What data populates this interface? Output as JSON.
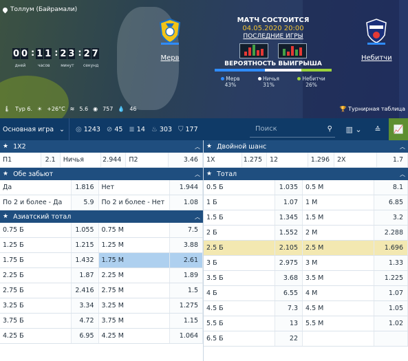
{
  "hero": {
    "venue": "Толлум (Байрамали)",
    "timer": [
      {
        "digits": [
          "0",
          "0"
        ],
        "label": "дней"
      },
      {
        "digits": [
          "1",
          "1"
        ],
        "label": "часов"
      },
      {
        "digits": [
          "2",
          "3"
        ],
        "label": "минут"
      },
      {
        "digits": [
          "2",
          "7"
        ],
        "label": "секунд"
      }
    ],
    "team1": {
      "name": "Мерв",
      "bar_color": "#2f8cff"
    },
    "team2": {
      "name": "Небитчи",
      "bar_color": "#2f8cff"
    },
    "status": "МАТЧ СОСТОИТСЯ",
    "date": "04.05.2020 20:00",
    "last_games_link": "ПОСЛЕДНИЕ ИГРЫ",
    "probability_title": "ВЕРОЯТНОСТЬ ВЫИГРЫША",
    "probabilities": [
      {
        "label": "Мерв 43%",
        "value": 43,
        "color": "#2f8cff"
      },
      {
        "label": "Ничья 31%",
        "value": 31,
        "color": "#ffffff"
      },
      {
        "label": "Небитчи 26%",
        "value": 26,
        "color": "#9bd23c"
      }
    ],
    "weather": {
      "round": "Тур 6.",
      "temp": "+26°C",
      "wind": "5.6",
      "pressure": "757",
      "humidity": "46"
    },
    "standings": "Турнирная таблица"
  },
  "nav": {
    "select_label": "Основная игра",
    "counts": [
      {
        "icon": "target-icon",
        "glyph": "◎",
        "value": "1243"
      },
      {
        "icon": "stats-icon",
        "glyph": "⊘",
        "value": "45"
      },
      {
        "icon": "bars-icon",
        "glyph": "≣",
        "value": "14"
      },
      {
        "icon": "fire-icon",
        "glyph": "♨",
        "value": "303"
      },
      {
        "icon": "shield-icon",
        "glyph": "⛉",
        "value": "177"
      }
    ],
    "search_placeholder": "Поиск"
  },
  "left": {
    "x12": {
      "title": "1X2",
      "rows": [
        [
          {
            "t": "П1",
            "w": 60
          },
          {
            "t": "2.1",
            "w": 28,
            "o": true
          },
          {
            "t": "Ничья",
            "w": 60
          },
          {
            "t": "2.944",
            "w": 36,
            "o": true
          },
          {
            "t": "П2",
            "w": 62
          },
          {
            "t": "3.46",
            "w": 50,
            "o": true
          }
        ]
      ]
    },
    "both": {
      "title": "Обе забьют",
      "rows": [
        [
          {
            "t": "Да",
            "w": 104
          },
          {
            "t": "1.816",
            "w": 40,
            "o": true
          },
          {
            "t": "Нет",
            "w": 104
          },
          {
            "t": "1.944",
            "w": 48,
            "o": true
          }
        ],
        [
          {
            "t": "По 2 и более - Да",
            "w": 104
          },
          {
            "t": "5.9",
            "w": 40,
            "o": true
          },
          {
            "t": "По 2 и более - Нет",
            "w": 104
          },
          {
            "t": "1.08",
            "w": 48,
            "o": true
          }
        ]
      ]
    },
    "asian": {
      "title": "Азиатский тотал",
      "rows": [
        [
          {
            "t": "0.75 Б",
            "w": 104
          },
          {
            "t": "1.055",
            "w": 40,
            "o": true
          },
          {
            "t": "0.75 М",
            "w": 104
          },
          {
            "t": "7.5",
            "w": 48,
            "o": true
          }
        ],
        [
          {
            "t": "1.25 Б",
            "w": 104
          },
          {
            "t": "1.215",
            "w": 40,
            "o": true
          },
          {
            "t": "1.25 М",
            "w": 104
          },
          {
            "t": "3.88",
            "w": 48,
            "o": true
          }
        ],
        [
          {
            "t": "1.75 Б",
            "w": 104
          },
          {
            "t": "1.432",
            "w": 40,
            "o": true
          },
          {
            "t": "1.75 М",
            "w": 104,
            "h": 1
          },
          {
            "t": "2.61",
            "w": 48,
            "o": true,
            "h": 1
          }
        ],
        [
          {
            "t": "2.25 Б",
            "w": 104
          },
          {
            "t": "1.87",
            "w": 40,
            "o": true
          },
          {
            "t": "2.25 М",
            "w": 104
          },
          {
            "t": "1.89",
            "w": 48,
            "o": true
          }
        ],
        [
          {
            "t": "2.75 Б",
            "w": 104
          },
          {
            "t": "2.416",
            "w": 40,
            "o": true
          },
          {
            "t": "2.75 М",
            "w": 104
          },
          {
            "t": "1.5",
            "w": 48,
            "o": true
          }
        ],
        [
          {
            "t": "3.25 Б",
            "w": 104
          },
          {
            "t": "3.34",
            "w": 40,
            "o": true
          },
          {
            "t": "3.25 М",
            "w": 104
          },
          {
            "t": "1.275",
            "w": 48,
            "o": true
          }
        ],
        [
          {
            "t": "3.75 Б",
            "w": 104
          },
          {
            "t": "4.72",
            "w": 40,
            "o": true
          },
          {
            "t": "3.75 М",
            "w": 104
          },
          {
            "t": "1.15",
            "w": 48,
            "o": true
          }
        ],
        [
          {
            "t": "4.25 Б",
            "w": 104
          },
          {
            "t": "6.95",
            "w": 40,
            "o": true
          },
          {
            "t": "4.25 М",
            "w": 104
          },
          {
            "t": "1.064",
            "w": 48,
            "o": true
          }
        ]
      ]
    }
  },
  "right": {
    "double": {
      "title": "Двойной шанс",
      "rows": [
        [
          {
            "t": "1X",
            "w": 56
          },
          {
            "t": "1.275",
            "w": 36,
            "o": true
          },
          {
            "t": "12",
            "w": 60
          },
          {
            "t": "1.296",
            "w": 38,
            "o": true
          },
          {
            "t": "2X",
            "w": 62
          },
          {
            "t": "1.7",
            "w": 45,
            "o": true
          }
        ]
      ]
    },
    "total": {
      "title": "Тотал",
      "rows": [
        [
          {
            "t": "0.5 Б",
            "w": 104
          },
          {
            "t": "1.035",
            "w": 40,
            "o": true
          },
          {
            "t": "0.5 М",
            "w": 104
          },
          {
            "t": "8.1",
            "w": 49,
            "o": true
          }
        ],
        [
          {
            "t": "1 Б",
            "w": 104
          },
          {
            "t": "1.07",
            "w": 40,
            "o": true
          },
          {
            "t": "1 М",
            "w": 104
          },
          {
            "t": "6.85",
            "w": 49,
            "o": true
          }
        ],
        [
          {
            "t": "1.5 Б",
            "w": 104
          },
          {
            "t": "1.345",
            "w": 40,
            "o": true
          },
          {
            "t": "1.5 М",
            "w": 104
          },
          {
            "t": "3.2",
            "w": 49,
            "o": true
          }
        ],
        [
          {
            "t": "2 Б",
            "w": 104
          },
          {
            "t": "1.552",
            "w": 40,
            "o": true
          },
          {
            "t": "2 М",
            "w": 104
          },
          {
            "t": "2.288",
            "w": 49,
            "o": true
          }
        ],
        [
          {
            "t": "2.5 Б",
            "w": 104,
            "y": 1
          },
          {
            "t": "2.105",
            "w": 40,
            "o": true,
            "y": 1
          },
          {
            "t": "2.5 М",
            "w": 104,
            "y": 1
          },
          {
            "t": "1.696",
            "w": 49,
            "o": true,
            "y": 1
          }
        ],
        [
          {
            "t": "3 Б",
            "w": 104
          },
          {
            "t": "2.975",
            "w": 40,
            "o": true
          },
          {
            "t": "3 М",
            "w": 104
          },
          {
            "t": "1.33",
            "w": 49,
            "o": true
          }
        ],
        [
          {
            "t": "3.5 Б",
            "w": 104
          },
          {
            "t": "3.68",
            "w": 40,
            "o": true
          },
          {
            "t": "3.5 М",
            "w": 104
          },
          {
            "t": "1.225",
            "w": 49,
            "o": true
          }
        ],
        [
          {
            "t": "4 Б",
            "w": 104
          },
          {
            "t": "6.55",
            "w": 40,
            "o": true
          },
          {
            "t": "4 М",
            "w": 104
          },
          {
            "t": "1.07",
            "w": 49,
            "o": true
          }
        ],
        [
          {
            "t": "4.5 Б",
            "w": 104
          },
          {
            "t": "7.3",
            "w": 40,
            "o": true
          },
          {
            "t": "4.5 М",
            "w": 104
          },
          {
            "t": "1.05",
            "w": 49,
            "o": true
          }
        ],
        [
          {
            "t": "5.5 Б",
            "w": 104
          },
          {
            "t": "13",
            "w": 40,
            "o": true
          },
          {
            "t": "5.5 М",
            "w": 104
          },
          {
            "t": "1.02",
            "w": 49,
            "o": true
          }
        ],
        [
          {
            "t": "6.5 Б",
            "w": 104
          },
          {
            "t": "22",
            "w": 40,
            "o": true
          },
          {
            "t": "",
            "w": 104
          },
          {
            "t": "",
            "w": 49,
            "o": true
          }
        ]
      ]
    }
  }
}
